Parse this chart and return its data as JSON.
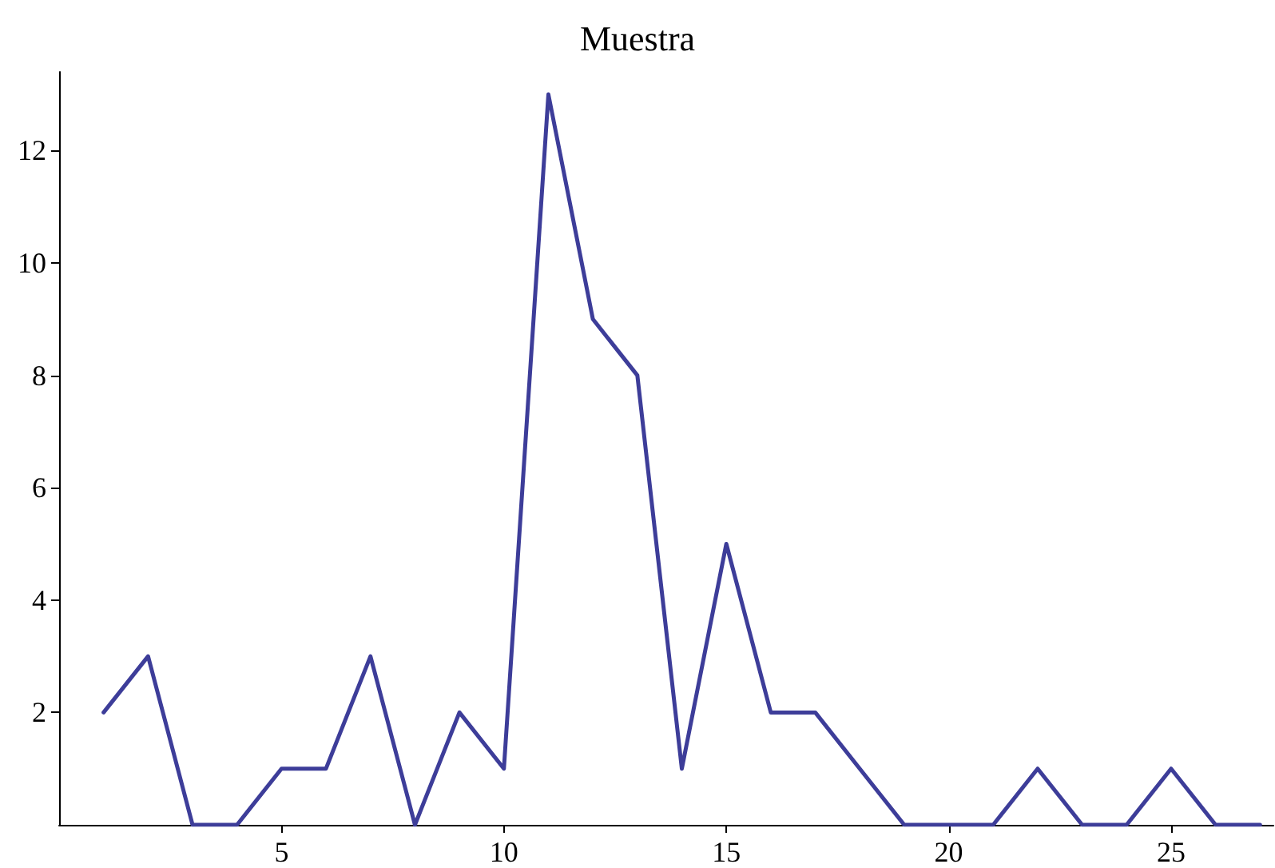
{
  "chart_data": {
    "type": "line",
    "title": "Muestra",
    "x": [
      1,
      2,
      3,
      4,
      5,
      6,
      7,
      8,
      9,
      10,
      11,
      12,
      13,
      14,
      15,
      16,
      17,
      18,
      19,
      20,
      21,
      22,
      23,
      24,
      25,
      26,
      27
    ],
    "series": [
      {
        "color": "#3d3d99",
        "values": [
          2,
          3,
          0,
          0,
          1,
          1,
          3,
          0,
          2,
          1,
          13,
          9,
          8,
          1,
          5,
          2,
          2,
          1,
          0,
          0,
          0,
          1,
          0,
          0,
          1,
          0,
          0
        ]
      }
    ],
    "xlim": [
      0,
      27.3
    ],
    "ylim": [
      0,
      13.4
    ],
    "xticks": [
      5,
      10,
      15,
      20,
      25
    ],
    "yticks": [
      2,
      4,
      6,
      8,
      10,
      12
    ],
    "grid": false,
    "marker": "none",
    "line_style": "solid"
  }
}
